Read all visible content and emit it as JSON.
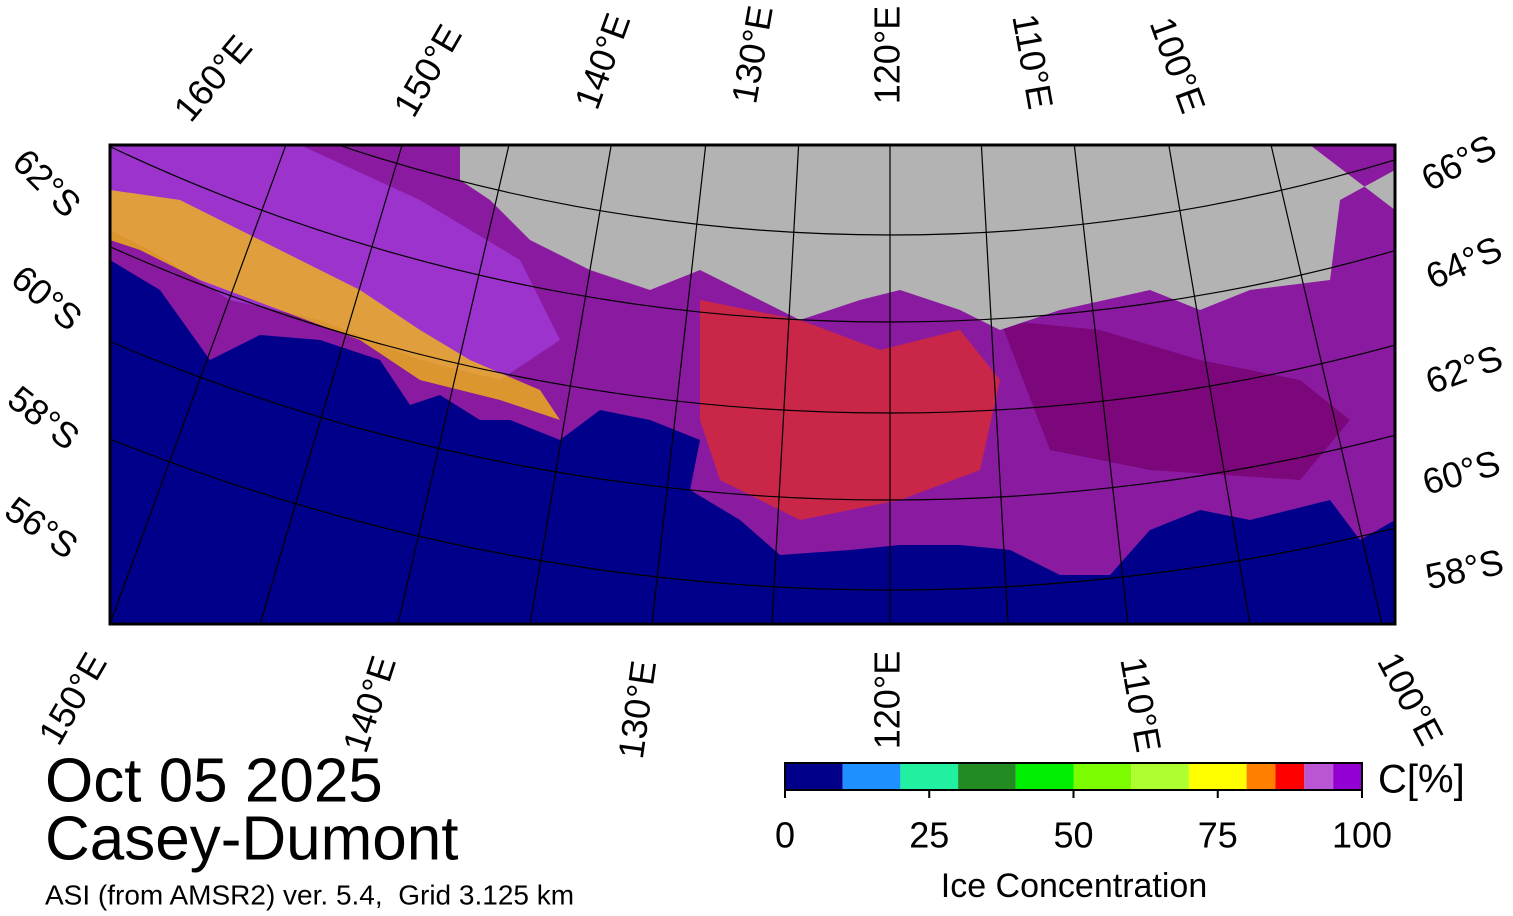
{
  "graticule_labels": {
    "top": [
      "160°E",
      "150°E",
      "140°E",
      "130°E",
      "120°E",
      "110°E",
      "100°E"
    ],
    "left": [
      "62°S",
      "60°S",
      "58°S",
      "56°S"
    ],
    "right": [
      "66°S",
      "64°S",
      "62°S",
      "60°S",
      "58°S"
    ],
    "bottom": [
      "150°E",
      "140°E",
      "130°E",
      "120°E",
      "110°E",
      "100°E"
    ]
  },
  "date": "Oct 05 2025",
  "region": "Casey-Dumont",
  "source": "ASI (from AMSR2) ver. 5.4,  Grid 3.125 km",
  "colorbar": {
    "title": "Ice Concentration",
    "unit": "C[%]",
    "range": [
      0,
      100
    ],
    "bounds": [
      0,
      10,
      20,
      30,
      40,
      50,
      60,
      70,
      80,
      85,
      90,
      95,
      100
    ],
    "colors": [
      "#00008b",
      "#1e90ff",
      "#20f0a0",
      "#228b22",
      "#00ee00",
      "#7cfc00",
      "#adff2f",
      "#ffff00",
      "#ff7f00",
      "#ff0000",
      "#ba55d3",
      "#9400d3"
    ],
    "ticks": [
      0,
      25,
      50,
      75,
      100
    ]
  }
}
